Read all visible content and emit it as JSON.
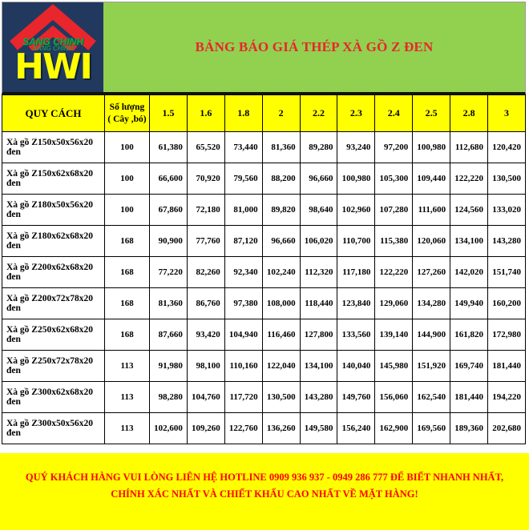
{
  "logo": {
    "brand_top": "SANG CHINH",
    "brand_main": "HWI"
  },
  "header": {
    "title": "BẢNG BÁO GIÁ THÉP XÀ GỒ Z ĐEN"
  },
  "table": {
    "col1_header": "QUY CÁCH",
    "col2_header_line1": "Số lượng",
    "col2_header_line2": "( Cây ,bó)",
    "length_headers": [
      "1.5",
      "1.6",
      "1.8",
      "2",
      "2.2",
      "2.3",
      "2.4",
      "2.5",
      "2.8",
      "3"
    ],
    "rows": [
      {
        "name": "Xà gồ Z150x50x56x20 đen",
        "qty": "100",
        "prices": [
          "61,380",
          "65,520",
          "73,440",
          "81,360",
          "89,280",
          "93,240",
          "97,200",
          "100,980",
          "112,680",
          "120,420"
        ]
      },
      {
        "name": "Xà gồ Z150x62x68x20 đen",
        "qty": "100",
        "prices": [
          "66,600",
          "70,920",
          "79,560",
          "88,200",
          "96,660",
          "100,980",
          "105,300",
          "109,440",
          "122,220",
          "130,500"
        ]
      },
      {
        "name": "Xà gồ Z180x50x56x20 đen",
        "qty": "100",
        "prices": [
          "67,860",
          "72,180",
          "81,000",
          "89,820",
          "98,640",
          "102,960",
          "107,280",
          "111,600",
          "124,560",
          "133,020"
        ]
      },
      {
        "name": "Xà gồ Z180x62x68x20 đen",
        "qty": "168",
        "prices": [
          "90,900",
          "77,760",
          "87,120",
          "96,660",
          "106,020",
          "110,700",
          "115,380",
          "120,060",
          "134,100",
          "143,280"
        ]
      },
      {
        "name": "Xà gồ Z200x62x68x20 đen",
        "qty": "168",
        "prices": [
          "77,220",
          "82,260",
          "92,340",
          "102,240",
          "112,320",
          "117,180",
          "122,220",
          "127,260",
          "142,020",
          "151,740"
        ]
      },
      {
        "name": "Xà gồ Z200x72x78x20 đen",
        "qty": "168",
        "prices": [
          "81,360",
          "86,760",
          "97,380",
          "108,000",
          "118,440",
          "123,840",
          "129,060",
          "134,280",
          "149,940",
          "160,200"
        ]
      },
      {
        "name": "Xà gồ Z250x62x68x20 đen",
        "qty": "168",
        "prices": [
          "87,660",
          "93,420",
          "104,940",
          "116,460",
          "127,800",
          "133,560",
          "139,140",
          "144,900",
          "161,820",
          "172,980"
        ]
      },
      {
        "name": "Xà gồ Z250x72x78x20 đen",
        "qty": "113",
        "prices": [
          "91,980",
          "98,100",
          "110,160",
          "122,040",
          "134,100",
          "140,040",
          "145,980",
          "151,920",
          "169,740",
          "181,440"
        ]
      },
      {
        "name": "Xà gồ Z300x62x68x20 đen",
        "qty": "113",
        "prices": [
          "98,280",
          "104,760",
          "117,720",
          "130,500",
          "143,280",
          "149,760",
          "156,060",
          "162,540",
          "181,440",
          "194,220"
        ]
      },
      {
        "name": "Xà gồ Z300x50x56x20 đen",
        "qty": "113",
        "prices": [
          "102,600",
          "109,260",
          "122,760",
          "136,260",
          "149,580",
          "156,240",
          "162,900",
          "169,560",
          "189,360",
          "202,680"
        ]
      }
    ]
  },
  "footer": {
    "text": "QUÝ KHÁCH HÀNG VUI LÒNG LIÊN HỆ HOTLINE 0909 936 937 - 0949 286 777 ĐỂ BIẾT NHANH NHẤT, CHÍNH XÁC NHẤT VÀ CHIẾT KHẤU CAO NHẤT VỀ MẶT HÀNG!"
  },
  "colors": {
    "header_green": "#92d050",
    "logo_navy": "#21395f",
    "accent_yellow": "#ffff00",
    "title_red": "#e8262b",
    "footer_red": "#fe0000",
    "roof_red": "#e8262b",
    "brand_green": "#1da24e"
  }
}
